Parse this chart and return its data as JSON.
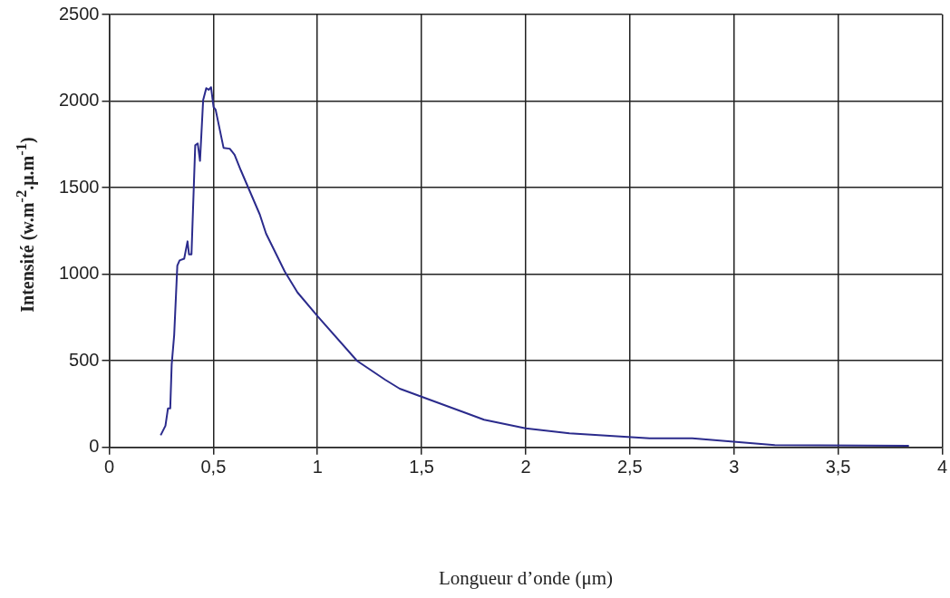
{
  "chart_data": {
    "type": "line",
    "xlabel": "Longueur d’onde (μm)",
    "ylabel": "Intensité (w.m$^{-2}$.μ.m$^{-1}$)",
    "x": [
      0.247,
      0.27,
      0.282,
      0.293,
      0.3,
      0.312,
      0.327,
      0.338,
      0.36,
      0.376,
      0.383,
      0.395,
      0.413,
      0.425,
      0.436,
      0.451,
      0.466,
      0.478,
      0.489,
      0.501,
      0.511,
      0.549,
      0.579,
      0.602,
      0.632,
      0.723,
      0.753,
      0.843,
      0.904,
      1.001,
      1.19,
      1.326,
      1.395,
      1.8,
      2.0,
      2.21,
      2.595,
      2.8,
      3.196,
      3.84
    ],
    "series": [
      {
        "color": "#2b2b8c",
        "values": [
          70,
          125,
          225,
          225,
          480,
          650,
          1050,
          1080,
          1090,
          1190,
          1115,
          1115,
          1745,
          1755,
          1655,
          2005,
          2075,
          2065,
          2080,
          1965,
          1950,
          1730,
          1725,
          1690,
          1600,
          1345,
          1235,
          1015,
          895,
          757,
          500,
          390,
          339,
          160,
          110,
          81,
          52,
          52,
          13,
          9
        ]
      }
    ],
    "xlim": [
      0,
      4
    ],
    "xticks": [
      0,
      {
        "value": 0.5,
        "label": "0,5"
      },
      1,
      {
        "value": 1.5,
        "label": "1,5"
      },
      2,
      {
        "value": 2.5,
        "label": "2,5"
      },
      3,
      {
        "value": 3.5,
        "label": "3,5"
      },
      4
    ],
    "ylim": [
      0,
      2500
    ],
    "yticks": [
      0,
      500,
      1000,
      1500,
      2000,
      2500
    ],
    "grid": true,
    "legend": false,
    "marker": "none",
    "line_style": "solid"
  }
}
